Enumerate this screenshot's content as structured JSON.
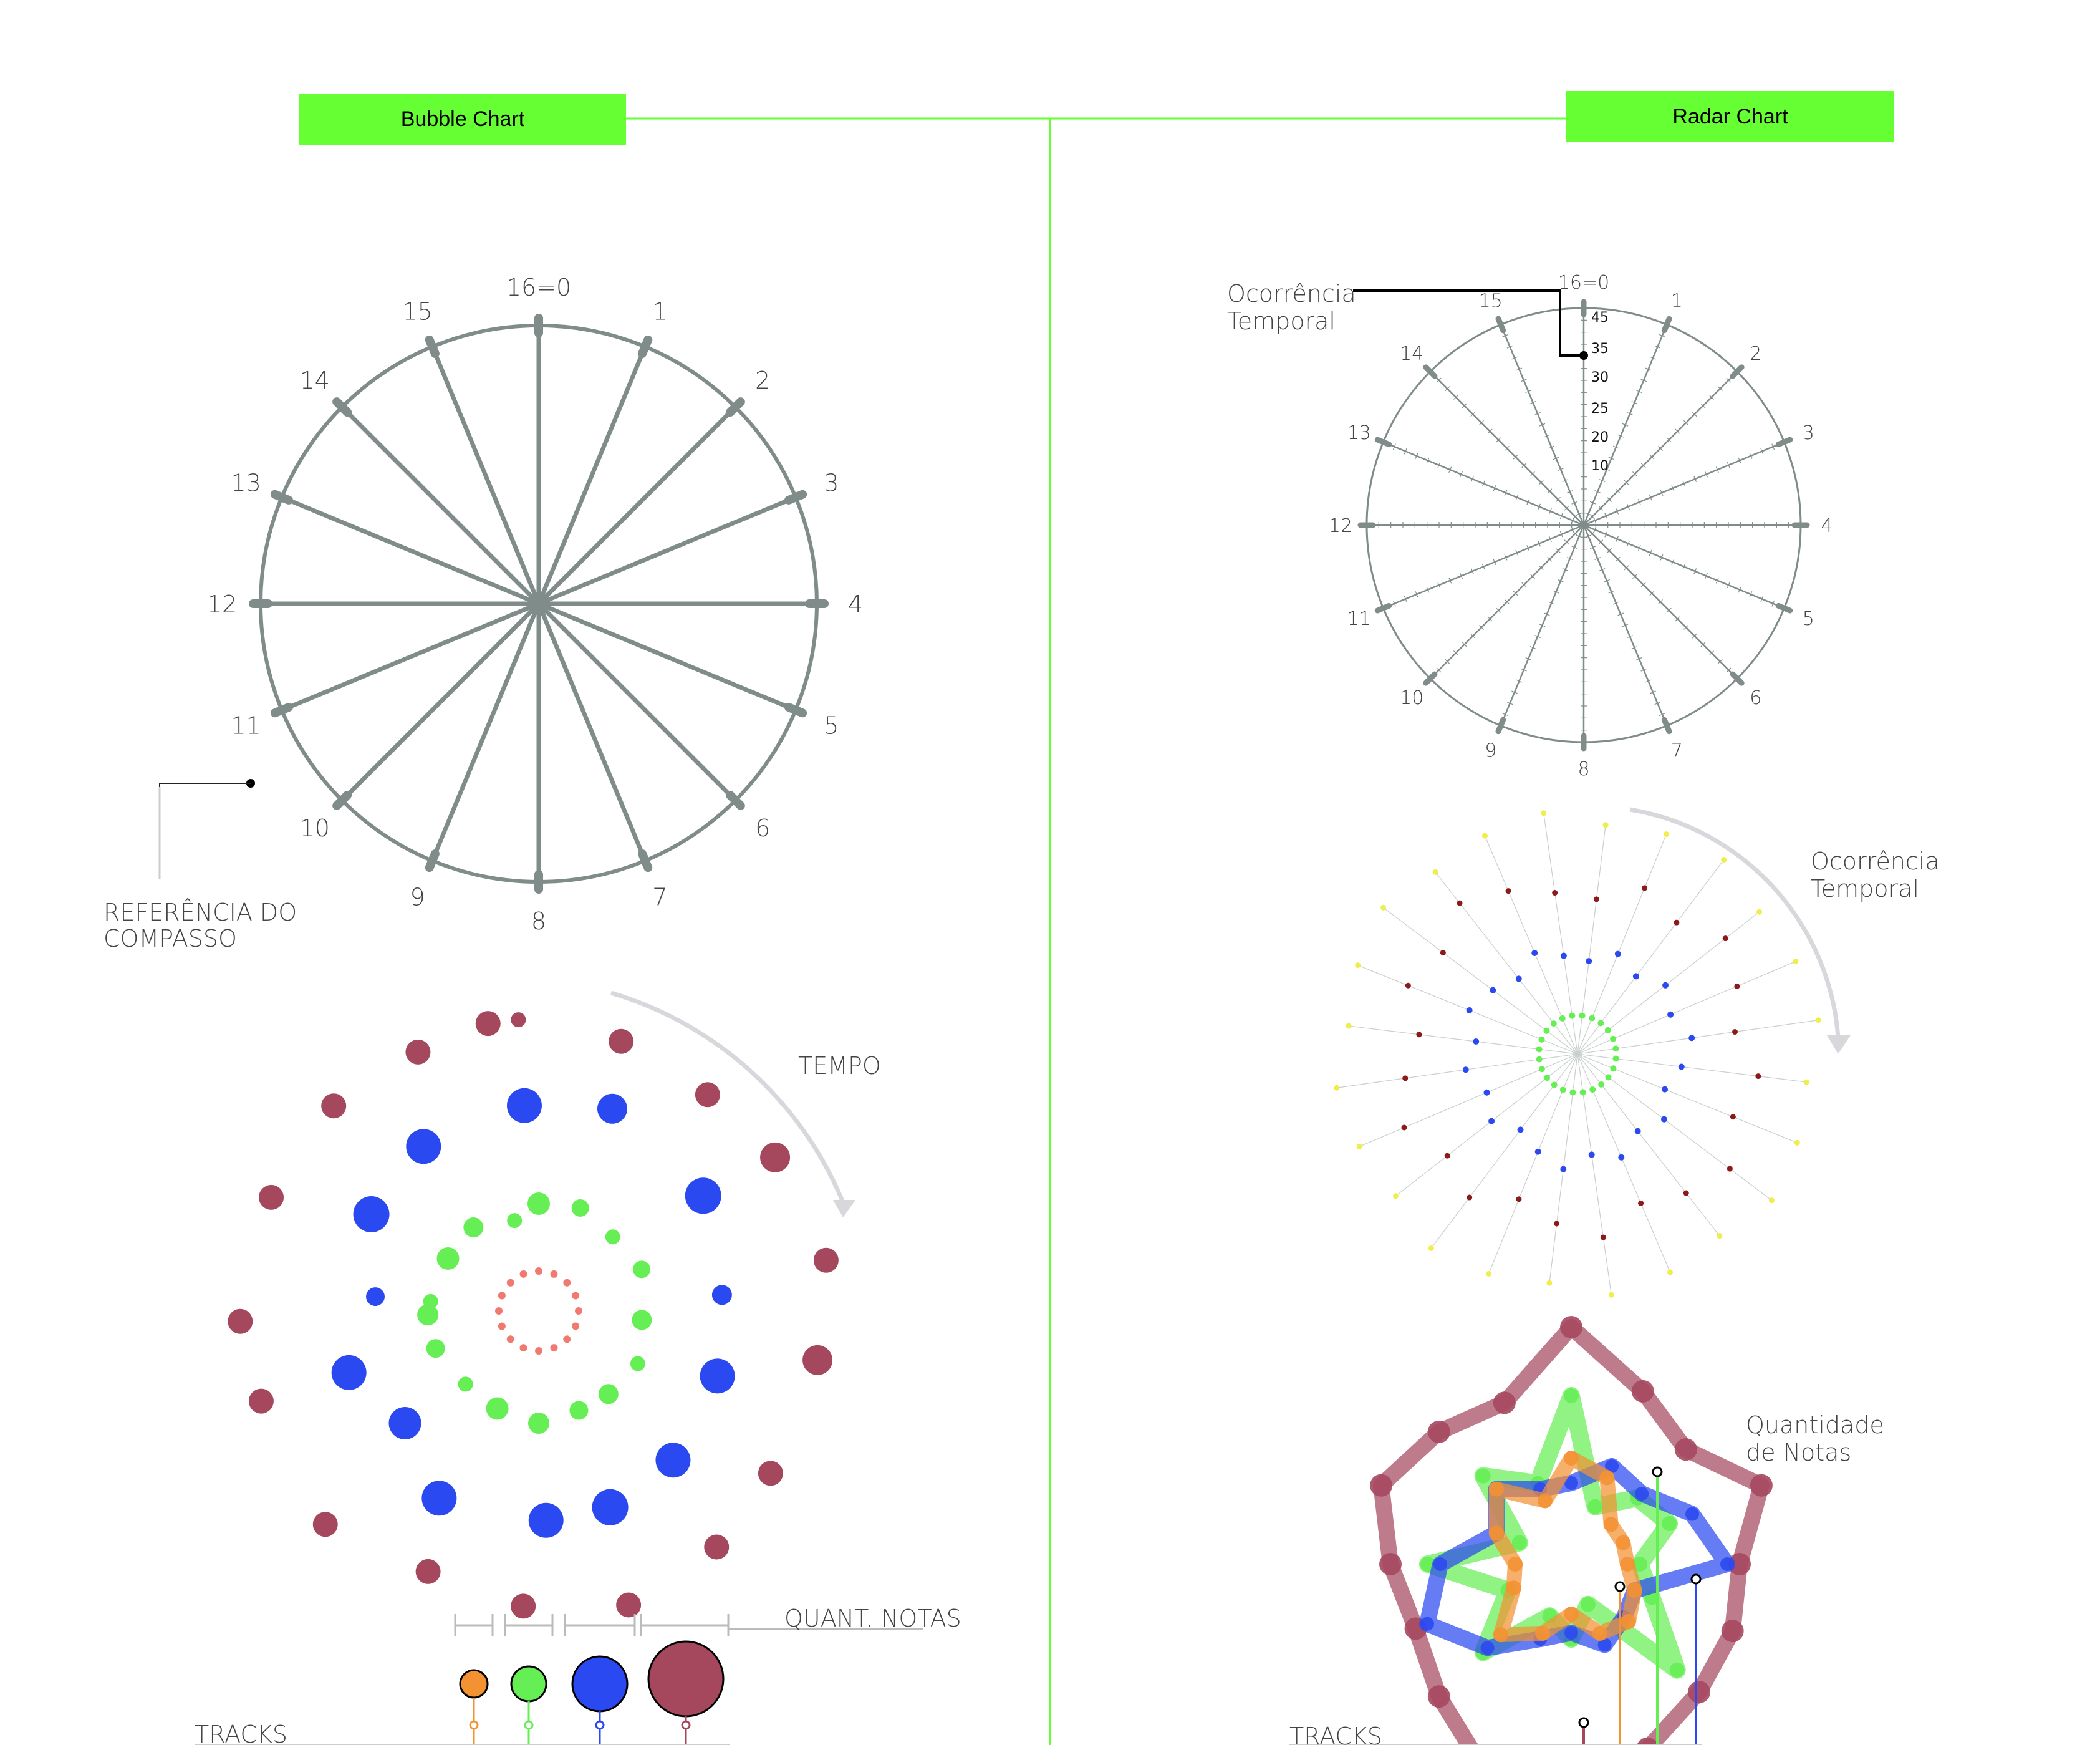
{
  "headers": {
    "left": "Bubble Chart",
    "right": "Radar Chart"
  },
  "dial_labels": [
    "16=0",
    "1",
    "2",
    "3",
    "4",
    "5",
    "6",
    "7",
    "8",
    "9",
    "10",
    "11",
    "12",
    "13",
    "14",
    "15"
  ],
  "radar_ticks": [
    "45",
    "35",
    "30",
    "25",
    "20",
    "10"
  ],
  "annotations": {
    "reference_line1": "REFERÊNCIA DO",
    "reference_line2": "COMPASSO",
    "tempo": "TEMPO",
    "quant_notas": "QUANT. NOTAS",
    "tracks_left": "TRACKS",
    "tracks_right": "TRACKS",
    "ocorrencia_top_line1": "Ocorrência",
    "ocorrencia_top_line2": "Temporal",
    "ocorrencia_mid_line1": "Ocorrência",
    "ocorrencia_mid_line2": "Temporal",
    "quantidade_line1": "Quantidade",
    "quantidade_line2": "de Notas"
  },
  "colors": {
    "accent": "#66ff33",
    "dial": "#7f8c8a",
    "orange": "#f39233",
    "green": "#66ee55",
    "blue": "#2b49f0",
    "maroon": "#a5485e",
    "salmon": "#f07a70",
    "dark_red": "#8b1a1a",
    "yellow": "#f0ee4a",
    "arrow": "#d8d8dc"
  },
  "legend_tracks": [
    "orange",
    "green",
    "blue",
    "maroon"
  ]
}
